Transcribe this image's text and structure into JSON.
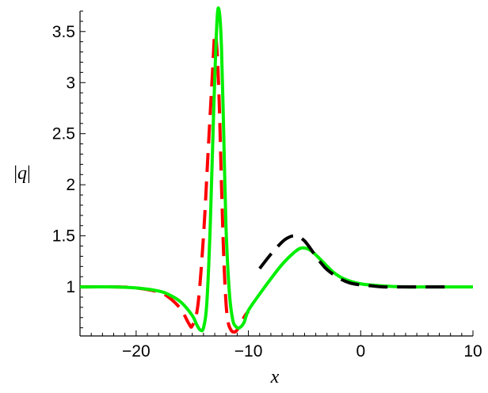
{
  "chart_data": {
    "type": "line",
    "title": "",
    "xlabel": "x",
    "ylabel_parts": [
      "|",
      "q",
      "|"
    ],
    "xlim": [
      -25,
      10
    ],
    "ylim": [
      0.52,
      3.7
    ],
    "x_ticks": [
      -20,
      -10,
      0,
      10
    ],
    "x_tick_labels": [
      "−20",
      "−10",
      "0",
      "10"
    ],
    "y_ticks": [
      1,
      1.5,
      2,
      2.5,
      3,
      3.5
    ],
    "y_tick_labels": [
      "1",
      "1.5",
      "2",
      "2.5",
      "3",
      "3.5"
    ],
    "grid": false,
    "legend": "none",
    "series": [
      {
        "color": "#ff0000",
        "style": "dashed",
        "x": [
          -25,
          -22,
          -20,
          -18,
          -17,
          -16,
          -15.3,
          -15,
          -14.5,
          -14,
          -13.6,
          -13.2,
          -13,
          -12.8,
          -12.6,
          -12.4,
          -12.2,
          -12,
          -11.8,
          -11.5,
          -11.2,
          -11,
          -10.7,
          -10.3,
          -10
        ],
        "y": [
          1.0,
          1.0,
          0.99,
          0.95,
          0.89,
          0.78,
          0.64,
          0.62,
          0.82,
          1.5,
          2.3,
          3.1,
          3.47,
          3.32,
          2.8,
          2.0,
          1.3,
          0.85,
          0.65,
          0.57,
          0.56,
          0.58,
          0.64,
          0.72,
          0.76
        ]
      },
      {
        "color": "#00ee00",
        "style": "solid",
        "x": [
          -25,
          -22,
          -20,
          -18,
          -17,
          -16,
          -15,
          -14.6,
          -14.3,
          -14,
          -13.7,
          -13.4,
          -13.1,
          -12.8,
          -12.6,
          -12.4,
          -12.2,
          -12,
          -11.7,
          -11.4,
          -11.1,
          -10.8,
          -10.4,
          -10,
          -9,
          -8,
          -7,
          -6,
          -5.3,
          -4.5,
          -3.5,
          -2.5,
          -1.5,
          0,
          2,
          4,
          6,
          8,
          10
        ],
        "y": [
          1.0,
          1.0,
          0.99,
          0.96,
          0.92,
          0.85,
          0.72,
          0.63,
          0.58,
          0.6,
          0.85,
          1.6,
          2.7,
          3.6,
          3.7,
          3.35,
          2.5,
          1.6,
          0.95,
          0.68,
          0.61,
          0.6,
          0.65,
          0.77,
          0.93,
          1.08,
          1.22,
          1.33,
          1.38,
          1.36,
          1.26,
          1.15,
          1.08,
          1.03,
          1.01,
          1.0,
          1.0,
          1.0,
          1.0
        ]
      },
      {
        "color": "#000000",
        "style": "dashed",
        "x": [
          -9,
          -8,
          -7,
          -6.5,
          -6,
          -5.5,
          -5,
          -4.5,
          -4,
          -3.5,
          -3,
          -2,
          -1,
          0,
          1,
          2,
          4,
          6,
          8
        ],
        "y": [
          1.18,
          1.32,
          1.44,
          1.48,
          1.5,
          1.49,
          1.45,
          1.38,
          1.3,
          1.23,
          1.17,
          1.09,
          1.04,
          1.02,
          1.01,
          1.0,
          1.0,
          1.0,
          1.0
        ]
      }
    ]
  }
}
